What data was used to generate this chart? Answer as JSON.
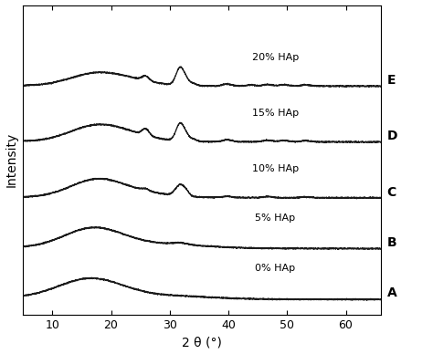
{
  "xlabel": "2 θ (°)",
  "ylabel": "Intensity",
  "xlim": [
    5,
    66
  ],
  "ylim": [
    -0.3,
    5.8
  ],
  "x_ticks": [
    10,
    20,
    30,
    40,
    50,
    60
  ],
  "labels": [
    "A",
    "B",
    "C",
    "D",
    "E"
  ],
  "annotations": [
    "0% HAp",
    "5% HAp",
    "10% HAp",
    "15% HAp",
    "20% HAp"
  ],
  "offsets": [
    0.0,
    1.0,
    2.0,
    3.1,
    4.2
  ],
  "ann_x": 48,
  "ann_above": 0.55,
  "line_color": "#1a1a1a",
  "noise_color": "#999999"
}
